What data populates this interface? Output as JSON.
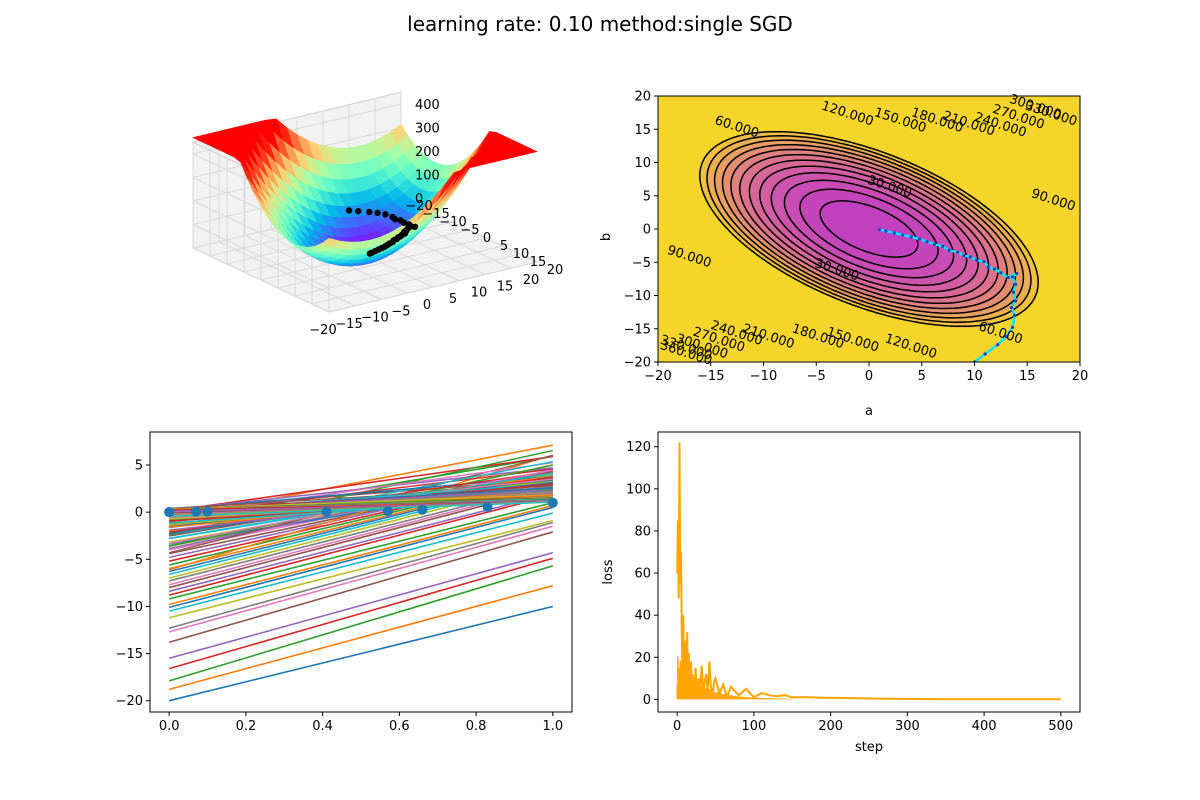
{
  "suptitle": "learning rate: 0.10 method:single SGD",
  "colors": {
    "trajectory": "#00e5ff",
    "trajectory_markers": "#1f3fbf",
    "loss_line": "#ffa500",
    "data_points": "#1f77b4",
    "surface_colormap": "rainbow",
    "contour_colormap": "spring_r",
    "contour_lines": "#000000"
  },
  "chart_data": [
    {
      "type": "surface3d",
      "panel": "3d-loss-surface",
      "x_ticks": [
        "−20",
        "−15",
        "−10",
        "−5",
        "0",
        "5",
        "10",
        "15",
        "20"
      ],
      "y_ticks": [
        "−20",
        "−15",
        "−10",
        "−5",
        "0",
        "5",
        "10",
        "15",
        "20"
      ],
      "z_ticks": [
        "0",
        "100",
        "200",
        "300",
        "400"
      ],
      "xlim": [
        -20,
        20
      ],
      "ylim": [
        -20,
        20
      ],
      "zlim": [
        0,
        450
      ],
      "grid": true,
      "note_points": "black markers at path positions on floor"
    },
    {
      "type": "contour",
      "panel": "loss-contour",
      "xlabel": "a",
      "ylabel": "b",
      "xlim": [
        -20,
        20
      ],
      "ylim": [
        -20,
        20
      ],
      "x_ticks": [
        "−20",
        "−15",
        "−10",
        "−5",
        "0",
        "5",
        "10",
        "15",
        "20"
      ],
      "y_ticks": [
        "−20",
        "−15",
        "−10",
        "−5",
        "0",
        "5",
        "10",
        "15",
        "20"
      ],
      "levels": [
        30,
        60,
        90,
        120,
        150,
        180,
        210,
        240,
        270,
        300,
        330,
        360
      ],
      "contour_labels": [
        {
          "text": "30.000",
          "a": 2,
          "b": 6.5
        },
        {
          "text": "30.000",
          "a": -3,
          "b": -6
        },
        {
          "text": "60.000",
          "a": -12.5,
          "b": 15.5
        },
        {
          "text": "60.000",
          "a": 12.5,
          "b": -15.5
        },
        {
          "text": "90.000",
          "a": -17,
          "b": -4
        },
        {
          "text": "90.000",
          "a": 17.5,
          "b": 4.5
        },
        {
          "text": "120.000",
          "a": -2,
          "b": 17.5
        },
        {
          "text": "120.000",
          "a": 4,
          "b": -17.5
        },
        {
          "text": "150.000",
          "a": 3,
          "b": 16.5
        },
        {
          "text": "150.000",
          "a": -1.5,
          "b": -16.5
        },
        {
          "text": "180.000",
          "a": 6.5,
          "b": 16.5
        },
        {
          "text": "180.000",
          "a": -4.8,
          "b": -16
        },
        {
          "text": "210.000",
          "a": 9.5,
          "b": 16
        },
        {
          "text": "210.000",
          "a": -9.5,
          "b": -16
        },
        {
          "text": "240.000",
          "a": 12.5,
          "b": 15.8
        },
        {
          "text": "240.000",
          "a": -12.5,
          "b": -15.5
        },
        {
          "text": "270.000",
          "a": 14.2,
          "b": 17
        },
        {
          "text": "270.000",
          "a": -14.2,
          "b": -16.5
        },
        {
          "text": "300.000",
          "a": 15.8,
          "b": 18.5
        },
        {
          "text": "300.000",
          "a": -15.8,
          "b": -17.5
        },
        {
          "text": "330.000",
          "a": 17.3,
          "b": 17.5
        },
        {
          "text": "330.000",
          "a": -17.3,
          "b": -17.7
        },
        {
          "text": "360.000",
          "a": -17.3,
          "b": -18.5
        }
      ],
      "trajectory": [
        [
          10,
          -20
        ],
        [
          11,
          -18.8
        ],
        [
          12.2,
          -17.4
        ],
        [
          13,
          -16.2
        ],
        [
          13.6,
          -14.8
        ],
        [
          13.8,
          -13
        ],
        [
          13.5,
          -11.8
        ],
        [
          13.9,
          -10.8
        ],
        [
          13.7,
          -9.5
        ],
        [
          13.9,
          -8.3
        ],
        [
          13.6,
          -7.2
        ],
        [
          14,
          -6.7
        ],
        [
          13.2,
          -7.3
        ],
        [
          12.5,
          -6.6
        ],
        [
          11.9,
          -6
        ],
        [
          11.3,
          -5.7
        ],
        [
          10.9,
          -4.9
        ],
        [
          10.2,
          -4.7
        ],
        [
          9.6,
          -4.2
        ],
        [
          9,
          -4
        ],
        [
          8.4,
          -3.5
        ],
        [
          7.6,
          -3.2
        ],
        [
          7,
          -2.6
        ],
        [
          6.2,
          -2.3
        ],
        [
          5.5,
          -1.9
        ],
        [
          4.8,
          -1.5
        ],
        [
          4,
          -1.2
        ],
        [
          3.2,
          -0.9
        ],
        [
          2.4,
          -0.6
        ],
        [
          1.6,
          -0.3
        ],
        [
          1,
          -0.1
        ]
      ]
    },
    {
      "type": "line",
      "panel": "fitted-lines",
      "xlim": [
        -0.05,
        1.05
      ],
      "ylim": [
        -21.2,
        8.5
      ],
      "x_ticks": [
        "0.0",
        "0.2",
        "0.4",
        "0.6",
        "0.8",
        "1.0"
      ],
      "y_ticks": [
        "−20",
        "−15",
        "−10",
        "−5",
        "0",
        "5"
      ],
      "data_points": {
        "x": [
          0.0,
          0.0,
          0.0,
          0.07,
          0.1,
          0.41,
          0.57,
          0.66,
          0.83,
          1.0
        ],
        "y": [
          0.0,
          0.0,
          0.0,
          0.05,
          0.05,
          0.05,
          0.1,
          0.25,
          0.55,
          1.0
        ]
      },
      "fit_lines": [
        {
          "a": 10,
          "b": -20
        },
        {
          "a": 11,
          "b": -18.8
        },
        {
          "a": 12.2,
          "b": -17.9
        },
        {
          "a": 11.7,
          "b": -16.6
        },
        {
          "a": 11.2,
          "b": -15.5
        },
        {
          "a": 11.7,
          "b": -13.8
        },
        {
          "a": 11.2,
          "b": -12.7
        },
        {
          "a": 11.2,
          "b": -12.3
        },
        {
          "a": 10.3,
          "b": -11.2
        },
        {
          "a": 10.4,
          "b": -10.5
        },
        {
          "a": 10.6,
          "b": -10.1
        },
        {
          "a": 10.5,
          "b": -9.8
        },
        {
          "a": 10.2,
          "b": -9.2
        },
        {
          "a": 10.6,
          "b": -8.8
        },
        {
          "a": 10.4,
          "b": -8.4
        },
        {
          "a": 10.6,
          "b": -8.0
        },
        {
          "a": 10.5,
          "b": -7.7
        },
        {
          "a": 10.3,
          "b": -7.3
        },
        {
          "a": 10.4,
          "b": -7.0
        },
        {
          "a": 10.2,
          "b": -6.6
        },
        {
          "a": 10.1,
          "b": -6.3
        },
        {
          "a": 9.9,
          "b": -6.0
        },
        {
          "a": 9.6,
          "b": -5.6
        },
        {
          "a": 9.3,
          "b": -5.2
        },
        {
          "a": 9.0,
          "b": -4.8
        },
        {
          "a": 8.6,
          "b": -4.4
        },
        {
          "a": 8.2,
          "b": -4.0
        },
        {
          "a": 7.7,
          "b": -3.6
        },
        {
          "a": 7.2,
          "b": -3.2
        },
        {
          "a": 6.7,
          "b": -2.8
        },
        {
          "a": 6.2,
          "b": -2.4
        },
        {
          "a": 5.6,
          "b": -2.0
        },
        {
          "a": 5.1,
          "b": -1.6
        },
        {
          "a": 4.6,
          "b": -1.3
        },
        {
          "a": 4.1,
          "b": -1.0
        },
        {
          "a": 3.6,
          "b": -0.7
        },
        {
          "a": 3.0,
          "b": -0.5
        },
        {
          "a": 2.5,
          "b": -0.3
        },
        {
          "a": 2.0,
          "b": -0.2
        },
        {
          "a": 1.6,
          "b": -0.1
        },
        {
          "a": 1.2,
          "b": 0.0
        },
        {
          "a": 7.8,
          "b": -0.7
        },
        {
          "a": 6.9,
          "b": -1.0
        },
        {
          "a": 5.8,
          "b": 0.1
        },
        {
          "a": 4.5,
          "b": 0.2
        },
        {
          "a": 3.2,
          "b": 0.3
        },
        {
          "a": 1.0,
          "b": 0.1
        }
      ]
    },
    {
      "type": "line",
      "panel": "loss-curve",
      "xlabel": "step",
      "ylabel": "loss",
      "xlim": [
        -25,
        525
      ],
      "ylim": [
        -6,
        127
      ],
      "x_ticks": [
        "0",
        "100",
        "200",
        "300",
        "400",
        "500"
      ],
      "y_ticks": [
        "0",
        "20",
        "40",
        "60",
        "80",
        "100",
        "120"
      ],
      "series": [
        {
          "x": [
            0,
            1,
            2,
            3,
            4,
            5,
            6,
            7,
            8,
            9,
            10,
            11,
            12,
            13,
            14,
            15,
            16,
            17,
            18,
            19,
            20,
            22,
            24,
            26,
            28,
            30,
            32,
            34,
            36,
            38,
            40,
            42,
            44,
            46,
            48,
            50,
            55,
            60,
            65,
            70,
            75,
            80,
            90,
            100,
            110,
            120,
            130,
            140,
            150,
            170,
            190,
            210,
            230,
            250,
            270,
            300,
            350,
            400,
            450,
            500
          ],
          "y": [
            60,
            85,
            48,
            122,
            55,
            70,
            30,
            12,
            40,
            5,
            28,
            18,
            8,
            32,
            4,
            22,
            10,
            2,
            18,
            6,
            12,
            3,
            15,
            1,
            10,
            5,
            16,
            2,
            9,
            12,
            3,
            18,
            6,
            2,
            8,
            10,
            3,
            7,
            1,
            6,
            4,
            2,
            5,
            1,
            3,
            2,
            1.5,
            2,
            1,
            1,
            0.8,
            0.7,
            0.6,
            0.4,
            0.3,
            0.2,
            0.1,
            0.05,
            0.03,
            0.02
          ]
        }
      ]
    }
  ]
}
